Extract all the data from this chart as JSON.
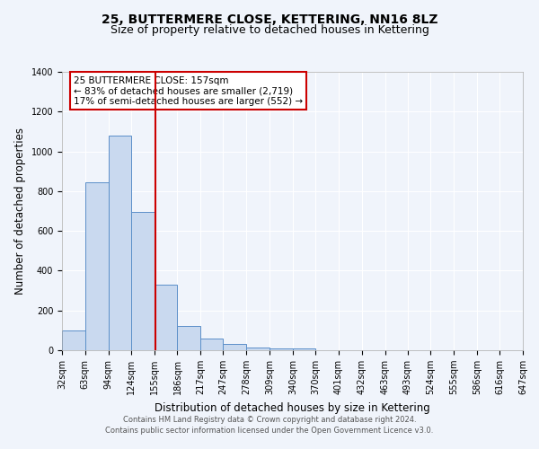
{
  "title": "25, BUTTERMERE CLOSE, KETTERING, NN16 8LZ",
  "subtitle": "Size of property relative to detached houses in Kettering",
  "xlabel": "Distribution of detached houses by size in Kettering",
  "ylabel": "Number of detached properties",
  "bin_edges": [
    32,
    63,
    94,
    124,
    155,
    186,
    217,
    247,
    278,
    309,
    340,
    370,
    401,
    432,
    463,
    493,
    524,
    555,
    586,
    616,
    647
  ],
  "bar_heights": [
    100,
    845,
    1080,
    695,
    330,
    120,
    60,
    30,
    15,
    10,
    10,
    0,
    0,
    0,
    0,
    0,
    0,
    0,
    0,
    0
  ],
  "bar_color": "#c9d9ef",
  "bar_edge_color": "#5b8fc9",
  "vline_x": 157,
  "vline_color": "#cc0000",
  "annotation_title": "25 BUTTERMERE CLOSE: 157sqm",
  "annotation_line1": "← 83% of detached houses are smaller (2,719)",
  "annotation_line2": "17% of semi-detached houses are larger (552) →",
  "annotation_box_color": "#ffffff",
  "annotation_box_edge": "#cc0000",
  "ylim": [
    0,
    1400
  ],
  "yticks": [
    0,
    200,
    400,
    600,
    800,
    1000,
    1200,
    1400
  ],
  "tick_labels": [
    "32sqm",
    "63sqm",
    "94sqm",
    "124sqm",
    "155sqm",
    "186sqm",
    "217sqm",
    "247sqm",
    "278sqm",
    "309sqm",
    "340sqm",
    "370sqm",
    "401sqm",
    "432sqm",
    "463sqm",
    "493sqm",
    "524sqm",
    "555sqm",
    "586sqm",
    "616sqm",
    "647sqm"
  ],
  "footnote1": "Contains HM Land Registry data © Crown copyright and database right 2024.",
  "footnote2": "Contains public sector information licensed under the Open Government Licence v3.0.",
  "background_color": "#f0f4fb",
  "grid_color": "#ffffff",
  "title_fontsize": 10,
  "subtitle_fontsize": 9,
  "axis_label_fontsize": 8.5,
  "tick_fontsize": 7,
  "footnote_fontsize": 6
}
